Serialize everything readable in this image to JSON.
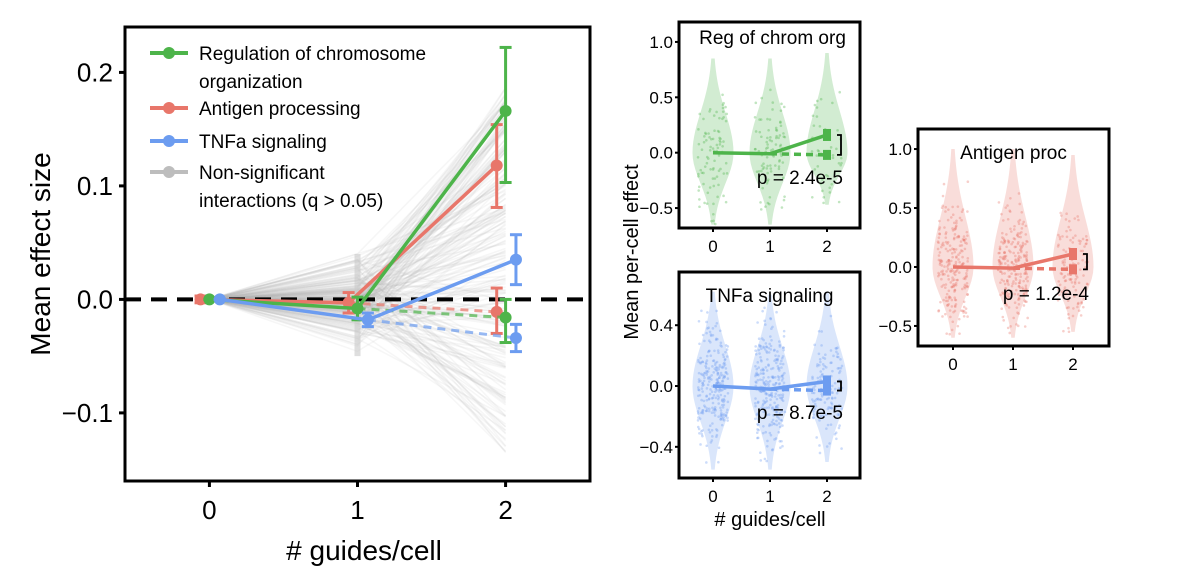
{
  "colors": {
    "green": "#4DB44A",
    "red": "#E8766A",
    "blue": "#6C9CF0",
    "grey": "#BDBDBD"
  },
  "chart_data": [
    {
      "type": "line",
      "xlabel": "# guides/cell",
      "ylabel": "Mean effect size",
      "xticks": [
        "0",
        "1",
        "2"
      ],
      "yticks": [
        "0.2",
        "0.1",
        "0.0",
        "−0.1"
      ],
      "ytick_values": [
        0.2,
        0.1,
        0.0,
        -0.1
      ],
      "xlim": [
        -0.57,
        2.57
      ],
      "ylim": [
        -0.16,
        0.24
      ],
      "reference_line": {
        "y": 0,
        "style": "dashed",
        "color": "#000000"
      },
      "legend": {
        "placement": "top-left",
        "entries": [
          {
            "lines": [
              "Regulation of chromosome",
              "organization"
            ],
            "color": "green"
          },
          {
            "lines": [
              "Antigen processing"
            ],
            "color": "red"
          },
          {
            "lines": [
              "TNFa signaling"
            ],
            "color": "blue"
          },
          {
            "lines": [
              "Non-significant",
              "interactions (q > 0.05)"
            ],
            "color": "grey"
          }
        ]
      },
      "series": [
        {
          "name": "Regulation of chromosome organization",
          "color": "green",
          "x": [
            0,
            1,
            2
          ],
          "y": [
            0,
            -0.008,
            0.166
          ],
          "err_low": [
            0,
            -0.018,
            0.103
          ],
          "err_high": [
            0,
            0.002,
            0.222
          ],
          "expected_2": -0.016,
          "expected_err": [
            -0.038,
            0.0
          ]
        },
        {
          "name": "Antigen processing",
          "color": "red",
          "x": [
            0,
            1,
            2
          ],
          "y": [
            0,
            -0.003,
            0.118
          ],
          "err_low": [
            -0.003,
            -0.012,
            0.081
          ],
          "err_high": [
            0.003,
            0.006,
            0.154
          ],
          "expected_2": -0.011,
          "expected_err": [
            -0.03,
            0.01
          ]
        },
        {
          "name": "TNFa signaling",
          "color": "blue",
          "x": [
            0,
            1,
            2
          ],
          "y": [
            0,
            -0.018,
            0.035
          ],
          "err_low": [
            0,
            -0.024,
            0.013
          ],
          "err_high": [
            0,
            -0.012,
            0.057
          ],
          "expected_2": -0.034,
          "expected_err": [
            -0.046,
            -0.022
          ]
        },
        {
          "name": "Non-significant interactions (q > 0.05)",
          "color": "grey",
          "envelope_at_1": [
            -0.05,
            0.045
          ],
          "envelope_at_2": [
            -0.14,
            0.2
          ]
        }
      ]
    },
    {
      "type": "violin",
      "title": "Reg of chrom org",
      "color": "green",
      "xticks": [
        "0",
        "1",
        "2"
      ],
      "yticks": [
        "1.0",
        "0.5",
        "0.0",
        "−0.5"
      ],
      "ytick_values": [
        1.0,
        0.5,
        0.0,
        -0.5
      ],
      "ylim": [
        -0.68,
        1.18
      ],
      "violin_ranges": [
        [
          -0.65,
          0.85
        ],
        [
          -0.65,
          0.85
        ],
        [
          -0.47,
          0.9
        ]
      ],
      "mean_line": [
        0,
        -0.01,
        0.16
      ],
      "expected_2": -0.02,
      "pvalue": "p = 2.4e-5"
    },
    {
      "type": "violin",
      "title": "TNFa signaling",
      "color": "blue",
      "xticks": [
        "0",
        "1",
        "2"
      ],
      "yticks": [
        "0.4",
        "0.0",
        "−0.4"
      ],
      "ytick_values": [
        0.4,
        0.0,
        -0.4
      ],
      "ylim": [
        -0.605,
        0.75
      ],
      "violin_ranges": [
        [
          -0.55,
          0.62
        ],
        [
          -0.55,
          0.6
        ],
        [
          -0.5,
          0.62
        ]
      ],
      "mean_line": [
        0,
        -0.02,
        0.03
      ],
      "expected_2": -0.03,
      "pvalue": "p = 8.7e-5"
    },
    {
      "type": "violin",
      "title": "Antigen proc",
      "color": "red",
      "xticks": [
        "0",
        "1",
        "2"
      ],
      "yticks": [
        "1.0",
        "0.5",
        "0.0",
        "−0.5"
      ],
      "ytick_values": [
        1.0,
        0.5,
        0.0,
        -0.5
      ],
      "ylim": [
        -0.67,
        1.17
      ],
      "violin_ranges": [
        [
          -0.6,
          1.0
        ],
        [
          -0.6,
          1.0
        ],
        [
          -0.55,
          0.95
        ]
      ],
      "mean_line": [
        0,
        -0.01,
        0.11
      ],
      "expected_2": -0.02,
      "pvalue": "p = 1.2e-4"
    }
  ],
  "small_panels": {
    "ylabel": "Mean per-cell effect",
    "xlabel": "# guides/cell"
  }
}
